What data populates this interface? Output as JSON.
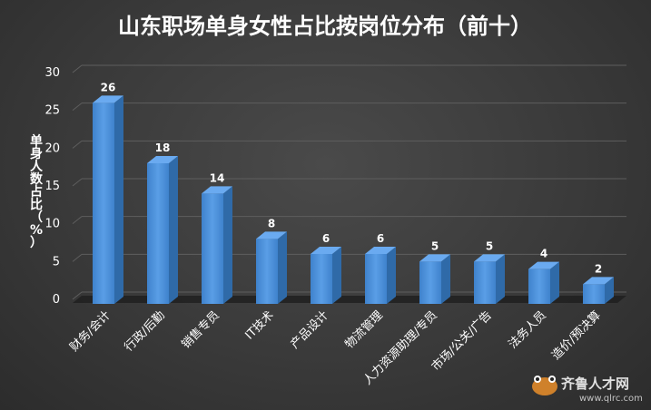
{
  "chart_data": {
    "type": "bar",
    "title": "山东职场单身女性占比按岗位分布（前十）",
    "ylabel": "单身人数占比（%）",
    "xlabel": "",
    "categories": [
      "财务/会计",
      "行政/后勤",
      "销售专员",
      "IT技术",
      "产品设计",
      "物流管理",
      "人力资源助理/专员",
      "市场/公关/广告",
      "法务人员",
      "造价/预决算"
    ],
    "values": [
      26,
      18,
      14,
      8,
      6,
      6,
      5,
      5,
      4,
      2
    ],
    "ylim": [
      0,
      30
    ],
    "yticks": [
      0,
      5,
      10,
      15,
      20,
      25,
      30
    ],
    "grid": true,
    "legend": "none",
    "bar_color": "#4a8fd6"
  },
  "watermark": {
    "brand": "齐鲁人才网",
    "url": "www.qlrc.com"
  }
}
